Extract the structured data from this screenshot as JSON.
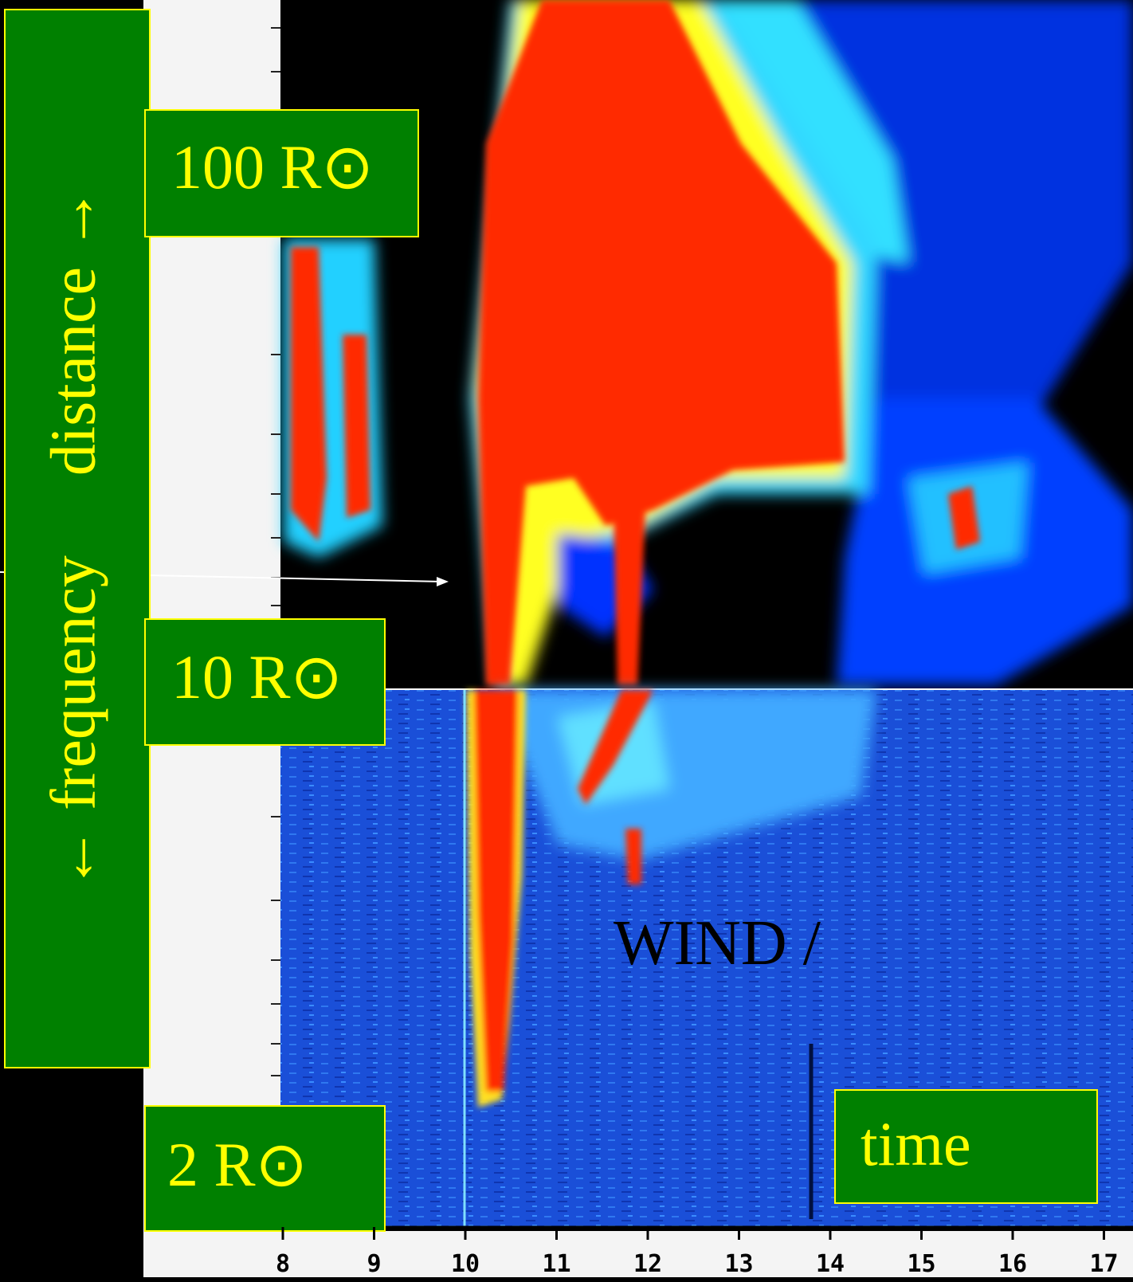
{
  "side_label": "← frequency     distance →",
  "markers": {
    "far": "100 R⊙",
    "mid": "10 R⊙",
    "near": "2 R⊙"
  },
  "time_label": "time",
  "instrument": "WIND /",
  "x_axis": {
    "ticks": [
      "8",
      "9",
      "10",
      "11",
      "12",
      "13",
      "14",
      "15",
      "16",
      "17"
    ]
  }
}
